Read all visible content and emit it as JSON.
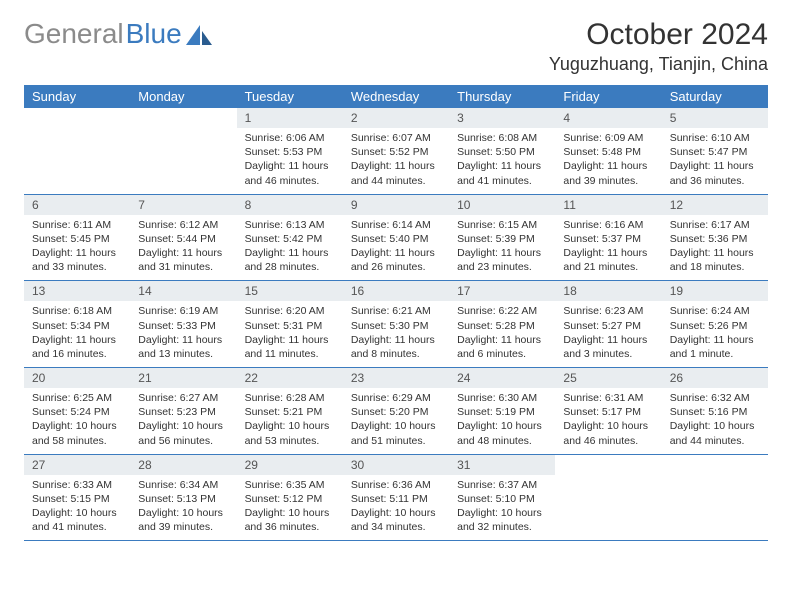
{
  "logo": {
    "gray": "General",
    "blue": "Blue"
  },
  "title": "October 2024",
  "location": "Yuguzhuang, Tianjin, China",
  "colors": {
    "header_bg": "#3b7bbf",
    "header_fg": "#ffffff",
    "daynum_bg": "#e9edf0",
    "rule": "#3b7bbf",
    "logo_gray": "#8b8b8b",
    "logo_blue": "#3b7bbf"
  },
  "weekdays": [
    "Sunday",
    "Monday",
    "Tuesday",
    "Wednesday",
    "Thursday",
    "Friday",
    "Saturday"
  ],
  "cells": [
    {
      "n": "",
      "sr": "",
      "ss": "",
      "dl": ""
    },
    {
      "n": "",
      "sr": "",
      "ss": "",
      "dl": ""
    },
    {
      "n": "1",
      "sr": "Sunrise: 6:06 AM",
      "ss": "Sunset: 5:53 PM",
      "dl": "Daylight: 11 hours and 46 minutes."
    },
    {
      "n": "2",
      "sr": "Sunrise: 6:07 AM",
      "ss": "Sunset: 5:52 PM",
      "dl": "Daylight: 11 hours and 44 minutes."
    },
    {
      "n": "3",
      "sr": "Sunrise: 6:08 AM",
      "ss": "Sunset: 5:50 PM",
      "dl": "Daylight: 11 hours and 41 minutes."
    },
    {
      "n": "4",
      "sr": "Sunrise: 6:09 AM",
      "ss": "Sunset: 5:48 PM",
      "dl": "Daylight: 11 hours and 39 minutes."
    },
    {
      "n": "5",
      "sr": "Sunrise: 6:10 AM",
      "ss": "Sunset: 5:47 PM",
      "dl": "Daylight: 11 hours and 36 minutes."
    },
    {
      "n": "6",
      "sr": "Sunrise: 6:11 AM",
      "ss": "Sunset: 5:45 PM",
      "dl": "Daylight: 11 hours and 33 minutes."
    },
    {
      "n": "7",
      "sr": "Sunrise: 6:12 AM",
      "ss": "Sunset: 5:44 PM",
      "dl": "Daylight: 11 hours and 31 minutes."
    },
    {
      "n": "8",
      "sr": "Sunrise: 6:13 AM",
      "ss": "Sunset: 5:42 PM",
      "dl": "Daylight: 11 hours and 28 minutes."
    },
    {
      "n": "9",
      "sr": "Sunrise: 6:14 AM",
      "ss": "Sunset: 5:40 PM",
      "dl": "Daylight: 11 hours and 26 minutes."
    },
    {
      "n": "10",
      "sr": "Sunrise: 6:15 AM",
      "ss": "Sunset: 5:39 PM",
      "dl": "Daylight: 11 hours and 23 minutes."
    },
    {
      "n": "11",
      "sr": "Sunrise: 6:16 AM",
      "ss": "Sunset: 5:37 PM",
      "dl": "Daylight: 11 hours and 21 minutes."
    },
    {
      "n": "12",
      "sr": "Sunrise: 6:17 AM",
      "ss": "Sunset: 5:36 PM",
      "dl": "Daylight: 11 hours and 18 minutes."
    },
    {
      "n": "13",
      "sr": "Sunrise: 6:18 AM",
      "ss": "Sunset: 5:34 PM",
      "dl": "Daylight: 11 hours and 16 minutes."
    },
    {
      "n": "14",
      "sr": "Sunrise: 6:19 AM",
      "ss": "Sunset: 5:33 PM",
      "dl": "Daylight: 11 hours and 13 minutes."
    },
    {
      "n": "15",
      "sr": "Sunrise: 6:20 AM",
      "ss": "Sunset: 5:31 PM",
      "dl": "Daylight: 11 hours and 11 minutes."
    },
    {
      "n": "16",
      "sr": "Sunrise: 6:21 AM",
      "ss": "Sunset: 5:30 PM",
      "dl": "Daylight: 11 hours and 8 minutes."
    },
    {
      "n": "17",
      "sr": "Sunrise: 6:22 AM",
      "ss": "Sunset: 5:28 PM",
      "dl": "Daylight: 11 hours and 6 minutes."
    },
    {
      "n": "18",
      "sr": "Sunrise: 6:23 AM",
      "ss": "Sunset: 5:27 PM",
      "dl": "Daylight: 11 hours and 3 minutes."
    },
    {
      "n": "19",
      "sr": "Sunrise: 6:24 AM",
      "ss": "Sunset: 5:26 PM",
      "dl": "Daylight: 11 hours and 1 minute."
    },
    {
      "n": "20",
      "sr": "Sunrise: 6:25 AM",
      "ss": "Sunset: 5:24 PM",
      "dl": "Daylight: 10 hours and 58 minutes."
    },
    {
      "n": "21",
      "sr": "Sunrise: 6:27 AM",
      "ss": "Sunset: 5:23 PM",
      "dl": "Daylight: 10 hours and 56 minutes."
    },
    {
      "n": "22",
      "sr": "Sunrise: 6:28 AM",
      "ss": "Sunset: 5:21 PM",
      "dl": "Daylight: 10 hours and 53 minutes."
    },
    {
      "n": "23",
      "sr": "Sunrise: 6:29 AM",
      "ss": "Sunset: 5:20 PM",
      "dl": "Daylight: 10 hours and 51 minutes."
    },
    {
      "n": "24",
      "sr": "Sunrise: 6:30 AM",
      "ss": "Sunset: 5:19 PM",
      "dl": "Daylight: 10 hours and 48 minutes."
    },
    {
      "n": "25",
      "sr": "Sunrise: 6:31 AM",
      "ss": "Sunset: 5:17 PM",
      "dl": "Daylight: 10 hours and 46 minutes."
    },
    {
      "n": "26",
      "sr": "Sunrise: 6:32 AM",
      "ss": "Sunset: 5:16 PM",
      "dl": "Daylight: 10 hours and 44 minutes."
    },
    {
      "n": "27",
      "sr": "Sunrise: 6:33 AM",
      "ss": "Sunset: 5:15 PM",
      "dl": "Daylight: 10 hours and 41 minutes."
    },
    {
      "n": "28",
      "sr": "Sunrise: 6:34 AM",
      "ss": "Sunset: 5:13 PM",
      "dl": "Daylight: 10 hours and 39 minutes."
    },
    {
      "n": "29",
      "sr": "Sunrise: 6:35 AM",
      "ss": "Sunset: 5:12 PM",
      "dl": "Daylight: 10 hours and 36 minutes."
    },
    {
      "n": "30",
      "sr": "Sunrise: 6:36 AM",
      "ss": "Sunset: 5:11 PM",
      "dl": "Daylight: 10 hours and 34 minutes."
    },
    {
      "n": "31",
      "sr": "Sunrise: 6:37 AM",
      "ss": "Sunset: 5:10 PM",
      "dl": "Daylight: 10 hours and 32 minutes."
    },
    {
      "n": "",
      "sr": "",
      "ss": "",
      "dl": ""
    },
    {
      "n": "",
      "sr": "",
      "ss": "",
      "dl": ""
    }
  ]
}
